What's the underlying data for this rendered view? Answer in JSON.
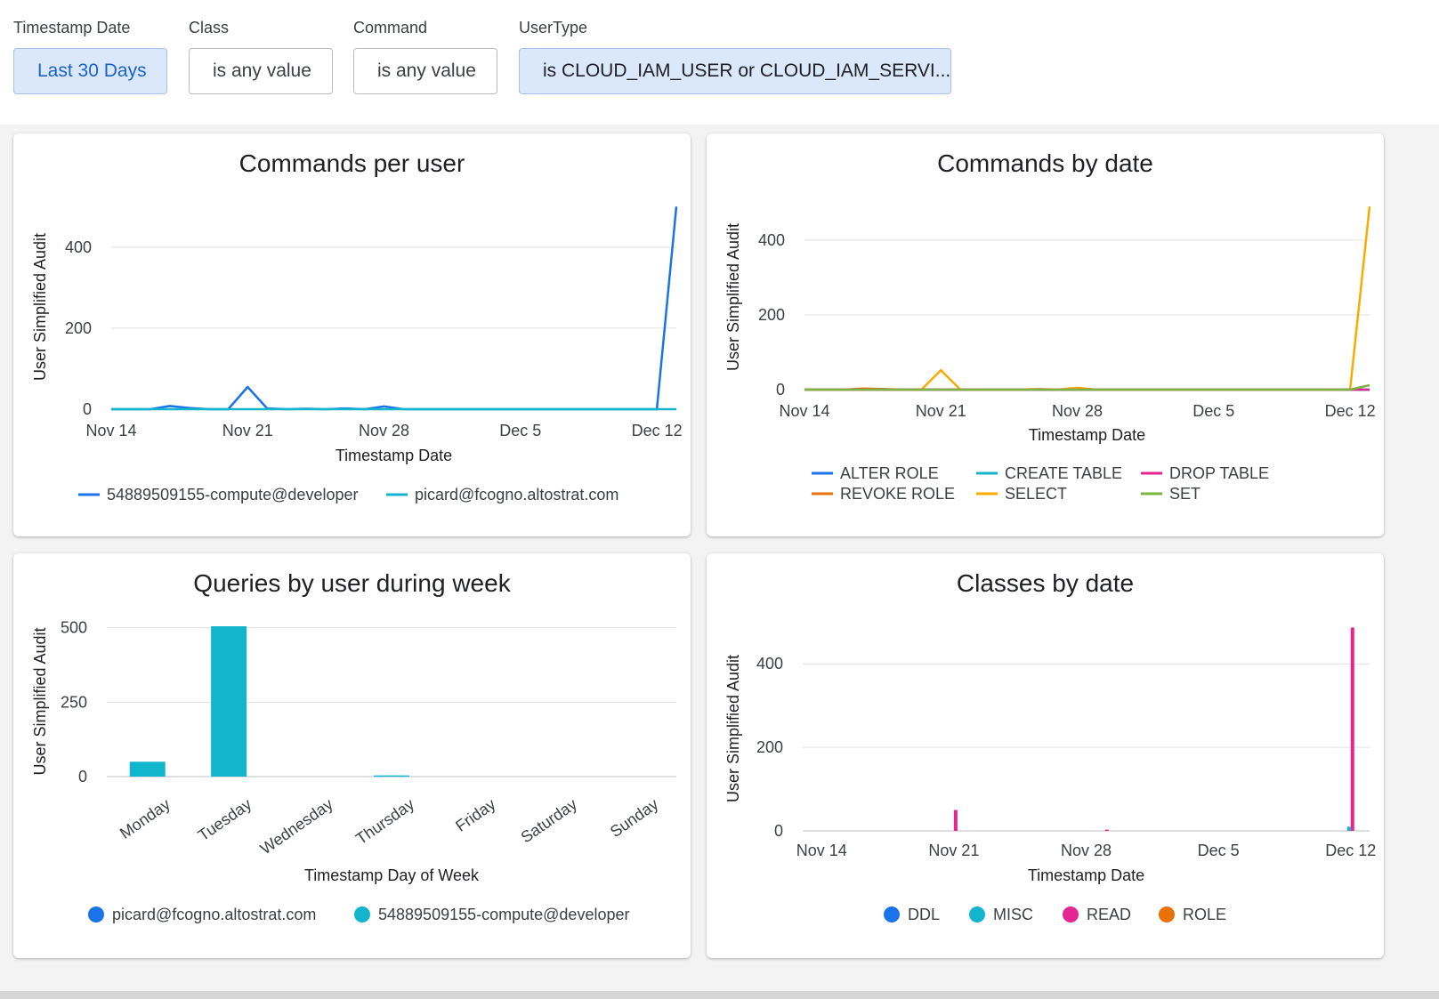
{
  "filters": [
    {
      "label": "Timestamp Date",
      "value": "Last 30 Days"
    },
    {
      "label": "Class",
      "value": "is any value"
    },
    {
      "label": "Command",
      "value": "is any value"
    },
    {
      "label": "UserType",
      "value": "is CLOUD_IAM_USER or CLOUD_IAM_SERVI..."
    }
  ],
  "colors": {
    "blue": "#1a73e8",
    "cyan": "#12b5cb",
    "pink": "#e52592",
    "orange": "#e8710a",
    "yellow": "#f9ab00",
    "green": "#7cb342"
  },
  "chart_data": [
    {
      "id": "commands-per-user",
      "type": "line",
      "title": "Commands per user",
      "xlabel": "Timestamp Date",
      "ylabel": "User Simplified Audit",
      "x_ticks": [
        {
          "label": "Nov 14",
          "day": 0
        },
        {
          "label": "Nov 21",
          "day": 7
        },
        {
          "label": "Nov 28",
          "day": 14
        },
        {
          "label": "Dec 5",
          "day": 21
        },
        {
          "label": "Dec 12",
          "day": 28
        }
      ],
      "y_ticks": [
        0,
        200,
        400
      ],
      "xlim": [
        0,
        29
      ],
      "ylim": [
        0,
        505
      ],
      "series": [
        {
          "name": "54889509155-compute@developer",
          "color": "#1a73e8",
          "x": [
            0,
            1,
            2,
            3,
            4,
            5,
            6,
            7,
            8,
            9,
            10,
            11,
            12,
            13,
            14,
            15,
            16,
            17,
            18,
            19,
            20,
            21,
            22,
            23,
            24,
            25,
            26,
            27,
            28,
            29
          ],
          "values": [
            0,
            0,
            0,
            8,
            3,
            0,
            0,
            55,
            2,
            0,
            1,
            0,
            2,
            0,
            7,
            0,
            0,
            0,
            0,
            0,
            0,
            0,
            0,
            0,
            0,
            0,
            0,
            0,
            0,
            500
          ]
        },
        {
          "name": "picard@fcogno.altostrat.com",
          "color": "#12b5cb",
          "x": [
            0,
            29
          ],
          "values": [
            0,
            0
          ]
        }
      ]
    },
    {
      "id": "commands-by-date",
      "type": "line",
      "title": "Commands by date",
      "xlabel": "Timestamp Date",
      "ylabel": "User Simplified Audit",
      "x_ticks": [
        {
          "label": "Nov 14",
          "day": 0
        },
        {
          "label": "Nov 21",
          "day": 7
        },
        {
          "label": "Nov 28",
          "day": 14
        },
        {
          "label": "Dec 5",
          "day": 21
        },
        {
          "label": "Dec 12",
          "day": 28
        }
      ],
      "y_ticks": [
        0,
        200,
        400
      ],
      "xlim": [
        0,
        29
      ],
      "ylim": [
        0,
        495
      ],
      "series": [
        {
          "name": "ALTER ROLE",
          "color": "#1a73e8",
          "x": [
            0,
            29
          ],
          "values": [
            0,
            0
          ]
        },
        {
          "name": "REVOKE ROLE",
          "color": "#e8710a",
          "x": [
            0,
            2,
            3,
            4,
            5,
            29
          ],
          "values": [
            0,
            0,
            3,
            2,
            0,
            0
          ]
        },
        {
          "name": "CREATE TABLE",
          "color": "#12b5cb",
          "x": [
            0,
            29
          ],
          "values": [
            0,
            0
          ]
        },
        {
          "name": "SELECT",
          "color": "#f9ab00",
          "x": [
            0,
            5,
            6,
            7,
            8,
            9,
            11,
            12,
            13,
            14,
            15,
            28,
            29
          ],
          "values": [
            0,
            0,
            0,
            52,
            0,
            0,
            0,
            2,
            0,
            5,
            0,
            0,
            490
          ]
        },
        {
          "name": "DROP TABLE",
          "color": "#e52592",
          "x": [
            0,
            29
          ],
          "values": [
            0,
            0
          ]
        },
        {
          "name": "SET",
          "color": "#7cb342",
          "x": [
            0,
            28,
            29
          ],
          "values": [
            0,
            0,
            12
          ]
        }
      ]
    },
    {
      "id": "queries-by-user-during-week",
      "type": "bar",
      "title": "Queries by user during week",
      "xlabel": "Timestamp Day of Week",
      "ylabel": "User Simplified Audit",
      "categories": [
        "Monday",
        "Tuesday",
        "Wednesday",
        "Thursday",
        "Friday",
        "Saturday",
        "Sunday"
      ],
      "y_ticks": [
        0,
        250,
        500
      ],
      "ylim": [
        0,
        505
      ],
      "series": [
        {
          "name": "picard@fcogno.altostrat.com",
          "color": "#1a73e8",
          "values": [
            0,
            0,
            0,
            0,
            0,
            0,
            0
          ]
        },
        {
          "name": "54889509155-compute@developer",
          "color": "#12b5cb",
          "values": [
            50,
            505,
            0,
            4,
            0,
            0,
            0
          ]
        }
      ]
    },
    {
      "id": "classes-by-date",
      "type": "bar",
      "title": "Classes by date",
      "xlabel": "Timestamp Date",
      "ylabel": "User Simplified Audit",
      "x_ticks": [
        {
          "label": "Nov 14",
          "day": 0
        },
        {
          "label": "Nov 21",
          "day": 7
        },
        {
          "label": "Nov 28",
          "day": 14
        },
        {
          "label": "Dec 5",
          "day": 21
        },
        {
          "label": "Dec 12",
          "day": 28
        }
      ],
      "y_ticks": [
        0,
        200,
        400
      ],
      "xlim": [
        -1,
        29
      ],
      "ylim": [
        0,
        490
      ],
      "series": [
        {
          "name": "DDL",
          "color": "#1a73e8",
          "points": []
        },
        {
          "name": "MISC",
          "color": "#12b5cb",
          "points": [
            {
              "day": 28,
              "value": 10
            }
          ]
        },
        {
          "name": "READ",
          "color": "#e52592",
          "points": [
            {
              "day": 7,
              "value": 50
            },
            {
              "day": 15,
              "value": 3
            },
            {
              "day": 28,
              "value": 487
            }
          ]
        },
        {
          "name": "ROLE",
          "color": "#e8710a",
          "points": []
        }
      ]
    }
  ]
}
